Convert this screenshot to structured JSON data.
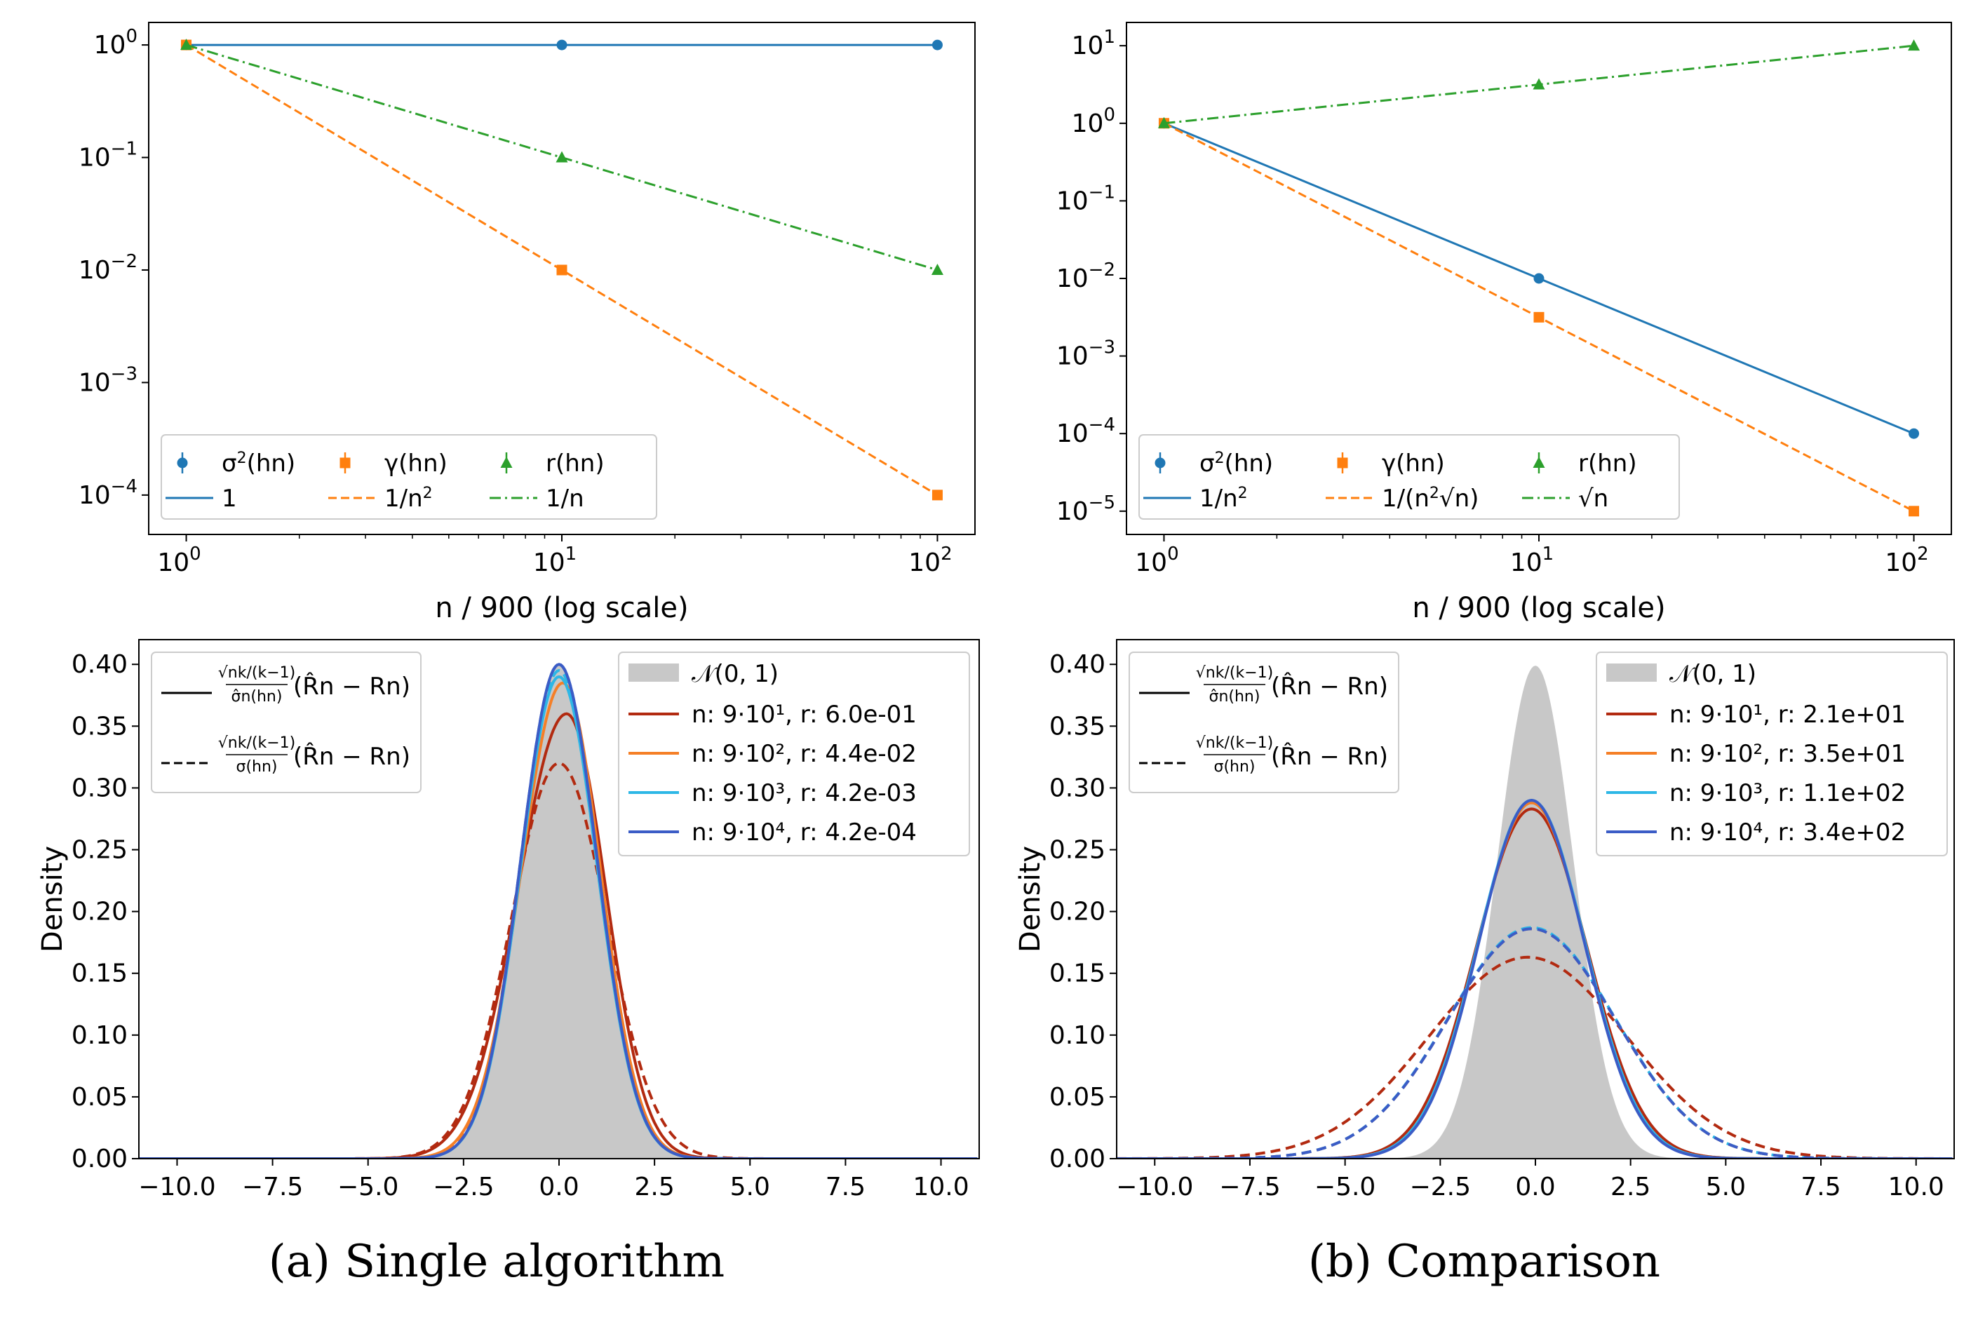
{
  "chart_data": [
    {
      "type": "line",
      "panel": "top-left",
      "xscale": "log",
      "yscale": "log",
      "x": [
        1,
        10,
        100
      ],
      "xlabel": "n / 900 (log scale)",
      "xticks": [
        "10^0",
        "10^1",
        "10^2"
      ],
      "yticks": [
        "10^0",
        "10^-1",
        "10^-2",
        "10^-3",
        "10^-4"
      ],
      "ylim_log10": [
        -4.35,
        0.2
      ],
      "series": [
        {
          "name": "σ²(h_n)",
          "fit": "1",
          "values": [
            1,
            1,
            1
          ],
          "color": "#1f77b4",
          "marker": "circle",
          "style": "solid"
        },
        {
          "name": "γ(h_n)",
          "fit": "1/n²",
          "values": [
            1,
            0.01,
            0.0001
          ],
          "color": "#ff7f0e",
          "marker": "square",
          "style": "dashed"
        },
        {
          "name": "r(h_n)",
          "fit": "1/n",
          "values": [
            1,
            0.1,
            0.01
          ],
          "color": "#2ca02c",
          "marker": "triangle",
          "style": "dashdot"
        }
      ],
      "legend": [
        "σ2(hn)",
        "γ(hn)",
        "r(hn)",
        "1",
        "1/n2",
        "1/n"
      ]
    },
    {
      "type": "line",
      "panel": "top-right",
      "xscale": "log",
      "yscale": "log",
      "x": [
        1,
        10,
        100
      ],
      "xlabel": "n / 900 (log scale)",
      "xticks": [
        "10^0",
        "10^1",
        "10^2"
      ],
      "yticks": [
        "10^1",
        "10^0",
        "10^-1",
        "10^-2",
        "10^-3",
        "10^-4",
        "10^-5"
      ],
      "ylim_log10": [
        -5.3,
        1.3
      ],
      "series": [
        {
          "name": "σ²(h_n)",
          "fit": "1/n²",
          "values": [
            1,
            0.01,
            0.0001
          ],
          "color": "#1f77b4",
          "marker": "circle",
          "style": "solid"
        },
        {
          "name": "γ(h_n)",
          "fit": "1/(n²√n)",
          "values": [
            1,
            0.00316,
            1e-05
          ],
          "color": "#ff7f0e",
          "marker": "square",
          "style": "dashed"
        },
        {
          "name": "r(h_n)",
          "fit": "√n",
          "values": [
            1,
            3.16,
            10
          ],
          "color": "#2ca02c",
          "marker": "triangle",
          "style": "dashdot"
        }
      ],
      "legend": [
        "σ2(hn)",
        "γ(hn)",
        "r(hn)",
        "1/n2",
        "1/(n2√n)",
        "√n"
      ]
    },
    {
      "type": "area",
      "panel": "bottom-left",
      "ylabel": "Density",
      "xlim": [
        -11,
        11
      ],
      "ylim": [
        0,
        0.42
      ],
      "xticks": [
        "−10.0",
        "−7.5",
        "−5.0",
        "−2.5",
        "0.0",
        "2.5",
        "5.0",
        "7.5",
        "10.0"
      ],
      "yticks": [
        "0.00",
        "0.05",
        "0.10",
        "0.15",
        "0.20",
        "0.25",
        "0.30",
        "0.35",
        "0.40"
      ],
      "reference": {
        "name": "N(0,1)",
        "mean": 0,
        "sd": 1,
        "color": "#c8c8c8"
      },
      "series": [
        {
          "name": "n: 9·10^1, r: 6.0e-01",
          "color": "#b22a10",
          "solid": {
            "mean": 0.2,
            "sd": 1.1,
            "peak": 0.36,
            "skew": -0.45
          },
          "dashed": {
            "mean": 0.0,
            "sd": 1.25,
            "peak": 0.32
          }
        },
        {
          "name": "n: 9·10^2, r: 4.4e-02",
          "color": "#f57f27",
          "solid": {
            "mean": 0.1,
            "sd": 1.02,
            "peak": 0.385,
            "skew": -0.2
          },
          "dashed": {
            "mean": 0.0,
            "sd": 1.02,
            "peak": 0.39
          }
        },
        {
          "name": "n: 9·10^3, r: 4.2e-03",
          "color": "#2db7e6",
          "solid": {
            "mean": 0.0,
            "sd": 1.0,
            "peak": 0.39,
            "skew": 0
          },
          "dashed": {
            "mean": 0.0,
            "sd": 1.0,
            "peak": 0.395
          }
        },
        {
          "name": "n: 9·10^4, r: 4.2e-04",
          "color": "#3b5cc6",
          "solid": {
            "mean": 0.0,
            "sd": 1.0,
            "peak": 0.4,
            "skew": 0
          },
          "dashed": {
            "mean": 0.0,
            "sd": 1.0,
            "peak": 0.4
          }
        }
      ],
      "legend_left": [
        "√(nk/(k−1)) / σ̂n(hn) · (R̂n − Rn)",
        "√(nk/(k−1)) / σ(hn) · (R̂n − Rn)"
      ]
    },
    {
      "type": "area",
      "panel": "bottom-right",
      "ylabel": "Density",
      "xlim": [
        -11,
        11
      ],
      "ylim": [
        0,
        0.42
      ],
      "xticks": [
        "−10.0",
        "−7.5",
        "−5.0",
        "−2.5",
        "0.0",
        "2.5",
        "5.0",
        "7.5",
        "10.0"
      ],
      "yticks": [
        "0.00",
        "0.05",
        "0.10",
        "0.15",
        "0.20",
        "0.25",
        "0.30",
        "0.35",
        "0.40"
      ],
      "reference": {
        "name": "N(0,1)",
        "mean": 0,
        "sd": 1,
        "color": "#c8c8c8"
      },
      "series": [
        {
          "name": "n: 9·10^1, r: 2.1e+01",
          "color": "#b22a10",
          "solid": {
            "mean": -0.1,
            "sd": 1.45,
            "peak": 0.283
          },
          "dashed": {
            "mean": -0.2,
            "sd": 2.6,
            "peak": 0.163
          }
        },
        {
          "name": "n: 9·10^2, r: 3.5e+01",
          "color": "#f57f27",
          "solid": {
            "mean": -0.1,
            "sd": 1.4,
            "peak": 0.288
          },
          "dashed": {
            "mean": -0.1,
            "sd": 2.2,
            "peak": 0.186
          }
        },
        {
          "name": "n: 9·10^3, r: 1.1e+02",
          "color": "#2db7e6",
          "solid": {
            "mean": -0.1,
            "sd": 1.4,
            "peak": 0.29
          },
          "dashed": {
            "mean": -0.1,
            "sd": 2.2,
            "peak": 0.187
          }
        },
        {
          "name": "n: 9·10^4, r: 3.4e+02",
          "color": "#3b5cc6",
          "solid": {
            "mean": -0.1,
            "sd": 1.38,
            "peak": 0.29
          },
          "dashed": {
            "mean": -0.1,
            "sd": 2.2,
            "peak": 0.186
          }
        }
      ],
      "legend_left": [
        "√(nk/(k−1)) / σ̂n(hn) · (R̂n − Rn)",
        "√(nk/(k−1)) / σ(hn) · (R̂n − Rn)"
      ]
    }
  ],
  "captions": {
    "left": "(a) Single algorithm",
    "right": "(b) Comparison"
  },
  "text": {
    "xlabel_log": "n / 900 (log scale)",
    "ylabel_density": "Density",
    "normal_label": "𝒩(0, 1)",
    "leg_sigma": "σ",
    "leg_gamma": "γ",
    "leg_r": "r",
    "leg_one": "1",
    "leg_invn": "1/n",
    "leg_invn2": "1/n",
    "leg_sqrtn": "√n",
    "leg_inv_n2sqrtn": "1/(n",
    "hn": "(hn)"
  }
}
